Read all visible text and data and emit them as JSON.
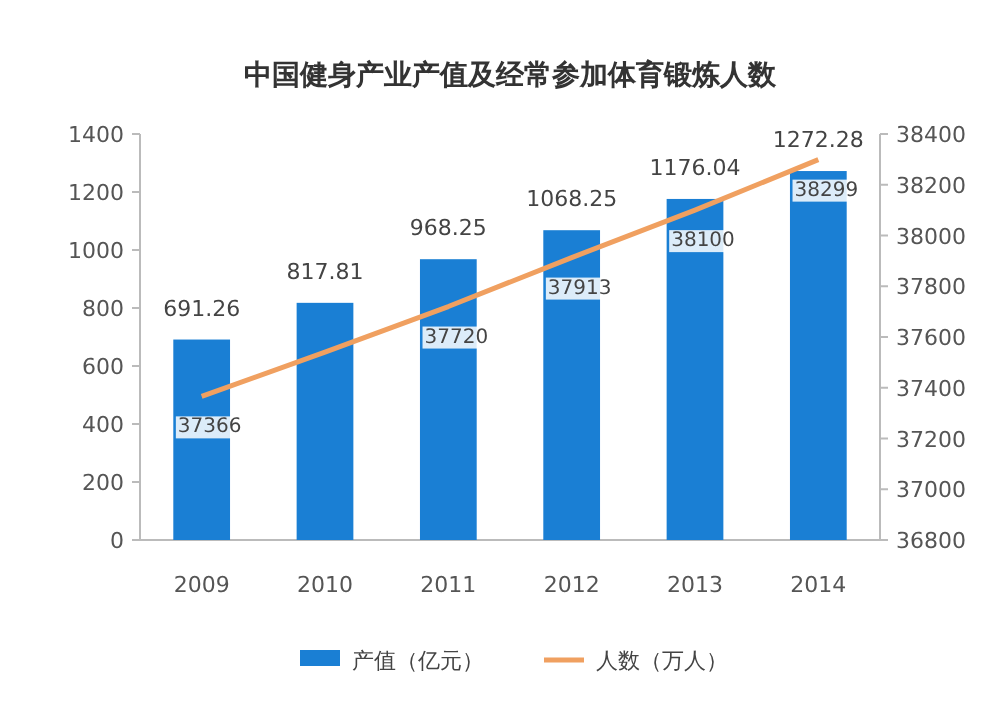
{
  "chart_data": {
    "type": "bar",
    "title": "中国健身产业产值及经常参加体育锻炼人数",
    "categories": [
      "2009",
      "2010",
      "2011",
      "2012",
      "2013",
      "2014"
    ],
    "series": [
      {
        "name": "产值（亿元）",
        "color": "#1a7fd4",
        "values": [
          691.26,
          817.81,
          968.25,
          1068.25,
          1176.04,
          1272.28
        ],
        "value_labels": [
          "691.26",
          "817.81",
          "968.25",
          "1068.25",
          "1176.04",
          "1272.28"
        ]
      },
      {
        "name": "人数（万人）",
        "type": "line",
        "axis": "y2",
        "color": "#f0a060",
        "values": [
          37366,
          37540,
          37720,
          37913,
          38100,
          38299
        ],
        "value_labels": [
          "37366",
          null,
          "37720",
          "37913",
          "38100",
          "38299"
        ]
      }
    ],
    "ylim": [
      0,
      1400
    ],
    "yticks": [
      0,
      200,
      400,
      600,
      800,
      1000,
      1200,
      1400
    ],
    "y2lim": [
      36800,
      38400
    ],
    "y2ticks": [
      36800,
      37000,
      37200,
      37400,
      37600,
      37800,
      38000,
      38200,
      38400
    ],
    "legend": "bottom"
  }
}
